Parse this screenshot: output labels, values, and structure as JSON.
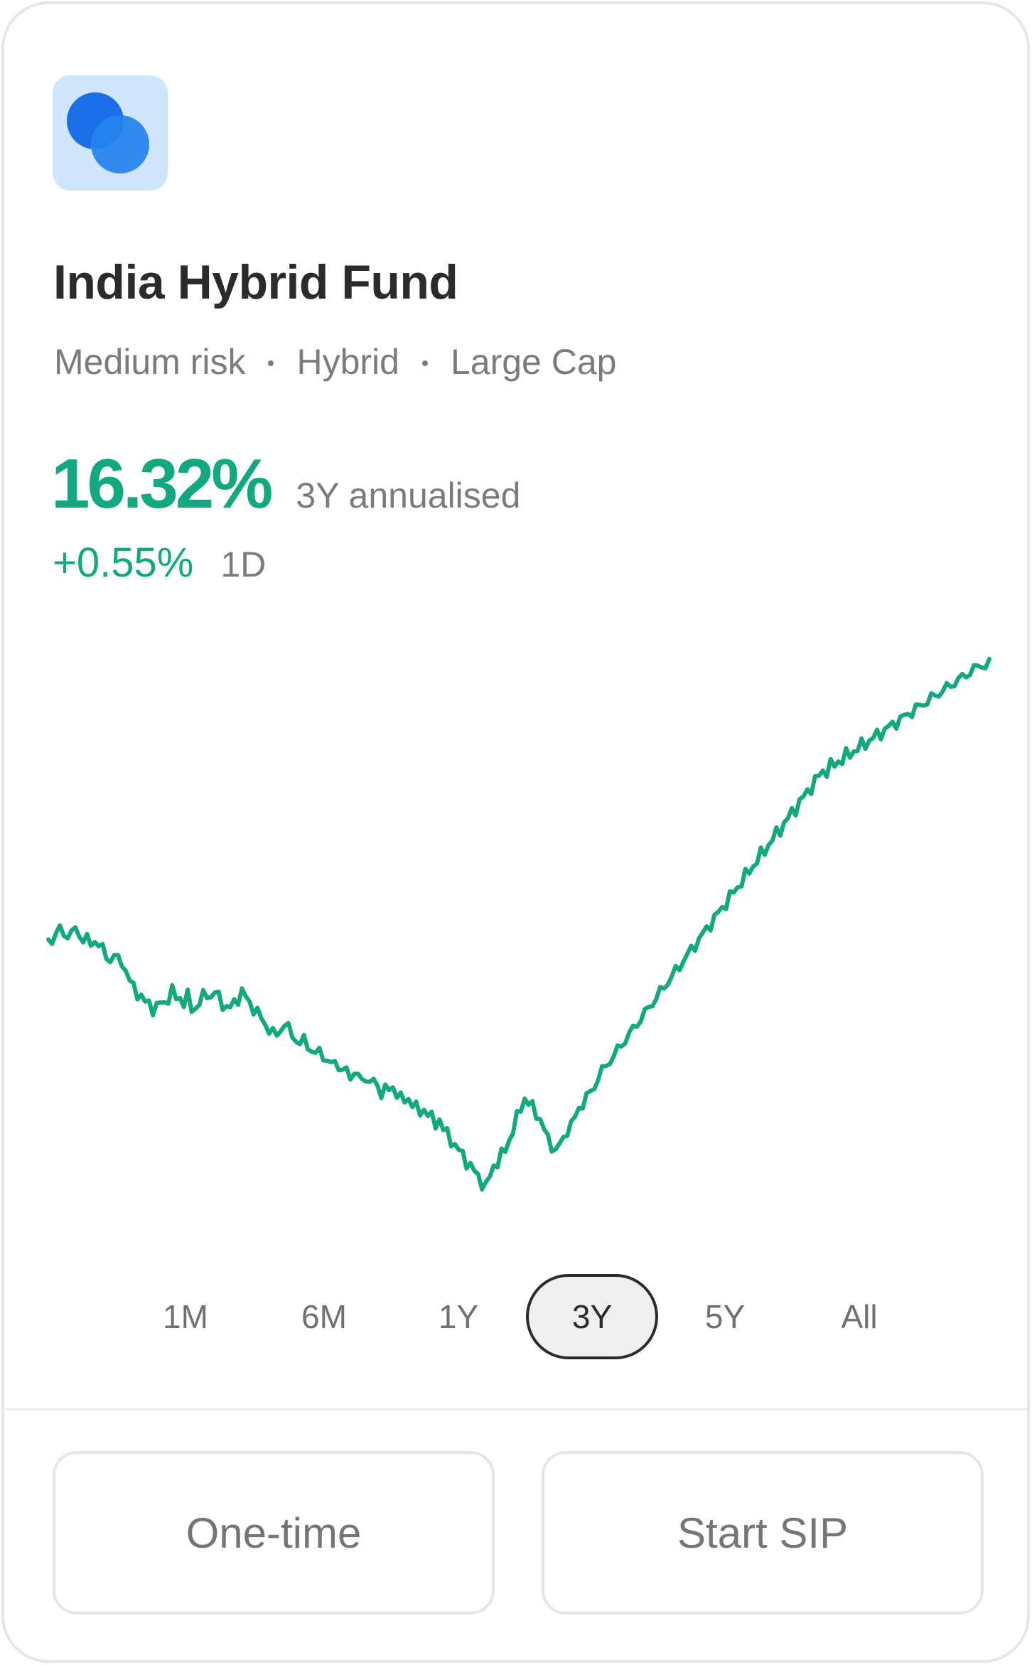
{
  "fund": {
    "name": "India Hybrid Fund",
    "logo_icon": "fund-logo-overlapping-circles",
    "tags": [
      "Medium risk",
      "Hybrid",
      "Large Cap"
    ]
  },
  "returns": {
    "annualised_value": "16.32%",
    "annualised_label": "3Y annualised",
    "day_change_value": "+0.55%",
    "day_change_label": "1D"
  },
  "ranges": {
    "options": [
      "1M",
      "6M",
      "1Y",
      "3Y",
      "5Y",
      "All"
    ],
    "selected": "3Y"
  },
  "actions": {
    "one_time_label": "One-time",
    "sip_label": "Start SIP"
  },
  "colors": {
    "positive": "#12a981",
    "logo_tile": "#cfe6fb",
    "logo_primary": "#1a6fe6"
  },
  "chart_data": {
    "type": "line",
    "title": "",
    "xlabel": "",
    "ylabel": "",
    "grid": false,
    "series": [
      {
        "values": [
          48,
          48,
          49,
          50,
          49,
          49,
          49,
          50,
          49,
          48,
          48,
          47,
          48,
          47,
          46,
          45,
          44,
          45,
          44,
          44,
          42,
          40,
          39,
          38,
          37,
          36,
          36,
          35,
          35,
          36,
          36,
          37,
          38,
          37,
          37,
          36,
          37,
          35,
          35,
          36,
          37,
          38,
          37,
          38,
          37,
          36,
          35,
          35,
          36,
          37,
          38,
          37,
          36,
          35,
          34,
          33,
          32,
          31,
          30,
          30,
          31,
          32,
          31,
          30,
          29,
          28,
          29,
          28,
          27,
          26,
          27,
          26,
          25,
          24,
          25,
          24,
          23,
          23,
          22,
          23,
          22,
          21,
          22,
          21,
          21,
          20,
          19,
          20,
          19,
          20,
          19,
          18,
          17,
          18,
          17,
          16,
          15,
          16,
          15,
          14,
          13,
          14,
          12,
          11,
          10,
          9,
          8,
          7,
          6,
          5,
          4,
          3,
          2,
          1,
          3,
          5,
          6,
          7,
          8,
          10,
          12,
          14,
          16,
          18,
          17,
          16,
          15,
          14,
          12,
          10,
          9,
          8,
          9,
          10,
          12,
          13,
          14,
          16,
          17,
          18,
          19,
          20,
          22,
          23,
          24,
          25,
          26,
          27,
          28,
          29,
          30,
          31,
          32,
          33,
          34,
          35,
          36,
          37,
          38,
          39,
          40,
          41,
          42,
          43,
          44,
          45,
          46,
          47,
          48,
          49,
          50,
          51,
          52,
          53,
          54,
          55,
          56,
          57,
          58,
          59,
          60,
          61,
          62,
          63,
          64,
          65,
          66,
          67,
          68,
          69,
          70,
          71,
          72,
          73,
          74,
          75,
          76,
          77,
          78,
          79,
          80,
          80,
          81,
          81,
          82,
          82,
          83,
          83,
          84,
          84,
          85,
          85,
          86,
          86,
          87,
          87,
          88,
          88,
          89,
          89,
          90,
          90,
          91,
          91,
          92,
          92,
          93,
          93,
          94,
          94,
          95,
          95,
          96,
          96,
          97,
          97,
          98,
          98,
          99,
          99,
          100,
          100,
          100,
          100
        ]
      }
    ]
  }
}
